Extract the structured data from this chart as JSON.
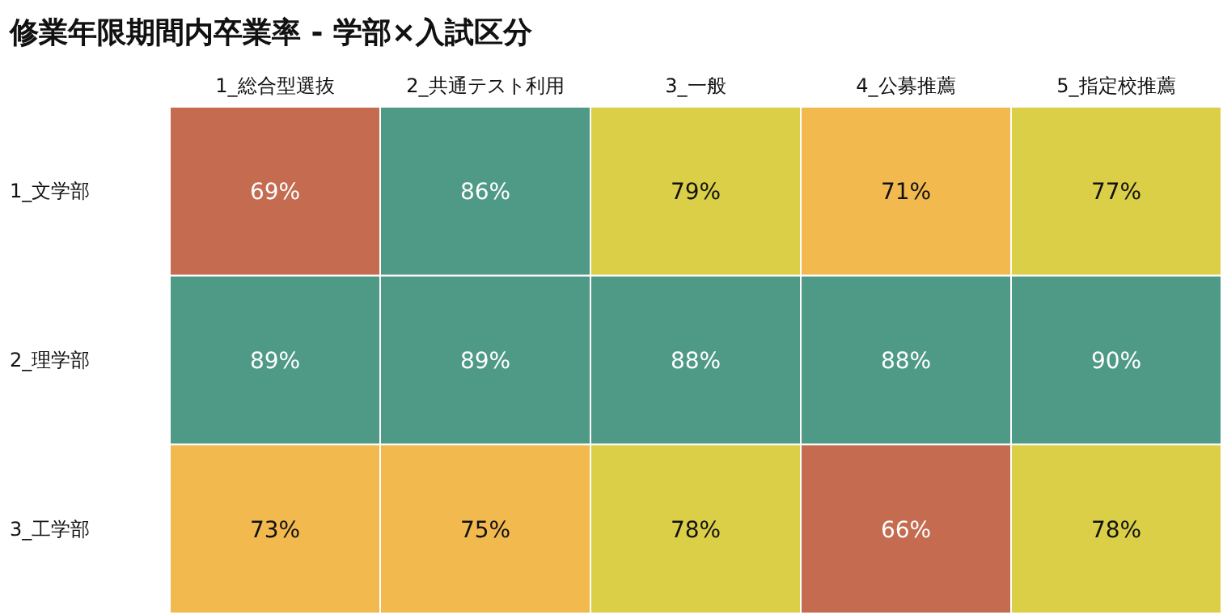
{
  "chart_data": {
    "type": "heatmap",
    "title": "修業年限期間内卒業率 - 学部×入試区分",
    "categories": [
      "1_総合型選抜",
      "2_共通テスト利用",
      "3_一般",
      "4_公募推薦",
      "5_指定校推薦"
    ],
    "y_categories": [
      "1_文学部",
      "2_理学部",
      "3_工学部"
    ],
    "cells": [
      [
        69,
        86,
        79,
        71,
        77
      ],
      [
        89,
        89,
        88,
        88,
        90
      ],
      [
        73,
        75,
        78,
        66,
        78
      ]
    ],
    "cell_labels": [
      [
        "69%",
        "86%",
        "79%",
        "71%",
        "77%"
      ],
      [
        "89%",
        "89%",
        "88%",
        "88%",
        "90%"
      ],
      [
        "73%",
        "75%",
        "78%",
        "66%",
        "78%"
      ]
    ]
  }
}
